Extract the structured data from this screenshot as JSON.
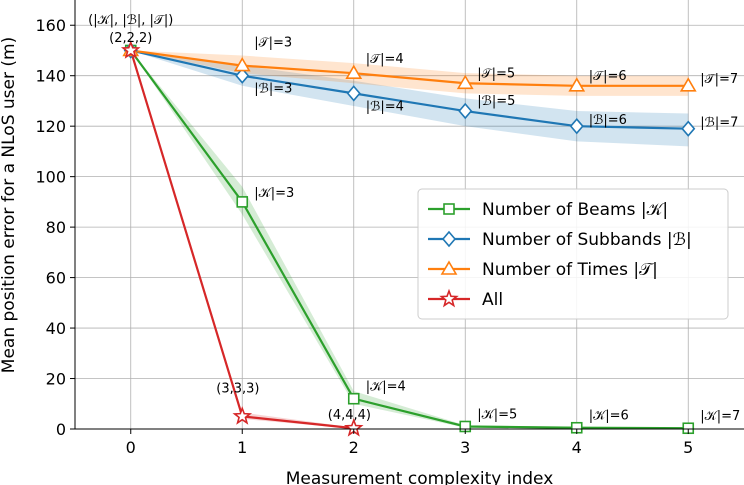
{
  "chart_data": {
    "type": "line",
    "title": "",
    "xlabel": "Measurement complexity index",
    "ylabel": "Mean position error for a NLoS user (m)",
    "xlim": [
      -0.5,
      5.5
    ],
    "ylim": [
      0,
      170
    ],
    "x_ticks": [
      "0",
      "1",
      "2",
      "3",
      "4",
      "5"
    ],
    "y_ticks": [
      "0",
      "20",
      "40",
      "60",
      "80",
      "100",
      "120",
      "140",
      "160"
    ],
    "grid": true,
    "legend_position": "center-right",
    "series": [
      {
        "name": "Number of Beams |𝒦|",
        "color": "#2ca02c",
        "marker": "square",
        "x": [
          0,
          1,
          2,
          3,
          4,
          5
        ],
        "values": [
          150,
          90,
          12,
          1,
          0.5,
          0.3
        ],
        "band_lower": [
          150,
          85,
          10,
          0.5,
          0.2,
          0.1
        ],
        "band_upper": [
          150,
          96,
          15,
          1.5,
          0.8,
          0.5
        ],
        "labels": [
          "",
          "|𝒦|=3",
          "|𝒦|=4",
          "|𝒦|=5",
          "|𝒦|=6",
          "|𝒦|=7"
        ]
      },
      {
        "name": "Number of Subbands |ℬ|",
        "color": "#1f77b4",
        "marker": "diamond",
        "x": [
          0,
          1,
          2,
          3,
          4,
          5
        ],
        "values": [
          150,
          140,
          133,
          126,
          120,
          119
        ],
        "band_lower": [
          150,
          136,
          128,
          120,
          114,
          112
        ],
        "band_upper": [
          150,
          144,
          138,
          131,
          126,
          125
        ],
        "labels": [
          "",
          "|ℬ|=3",
          "|ℬ|=4",
          "|ℬ|=5",
          "|ℬ|=6",
          "|ℬ|=7"
        ]
      },
      {
        "name": "Number of Times |𝒯|",
        "color": "#ff7f0e",
        "marker": "triangle",
        "x": [
          0,
          1,
          2,
          3,
          4,
          5
        ],
        "values": [
          150,
          144,
          141,
          137,
          136,
          136
        ],
        "band_lower": [
          150,
          141,
          137,
          133,
          132,
          132
        ],
        "band_upper": [
          150,
          148,
          145,
          141,
          140,
          140
        ],
        "labels": [
          "",
          "|𝒯|=3",
          "|𝒯|=4",
          "|𝒯|=5",
          "|𝒯|=6",
          "|𝒯|=7"
        ]
      },
      {
        "name": "All",
        "color": "#d62728",
        "marker": "star",
        "x": [
          0,
          1,
          2
        ],
        "values": [
          150,
          5,
          0.3
        ],
        "band_lower": [
          150,
          4,
          0.1
        ],
        "band_upper": [
          150,
          6.5,
          0.6
        ],
        "labels": [
          "",
          "(3,3,3)",
          "(4,4,4)"
        ]
      }
    ],
    "origin_annotation": [
      "(|𝒦|, |ℬ|, |𝒯|)",
      "(2,2,2)"
    ]
  }
}
